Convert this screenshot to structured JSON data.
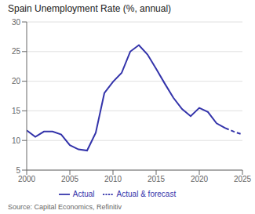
{
  "chart_data": {
    "type": "line",
    "title": "Spain Unemployment Rate (%, annual)",
    "annotations": [
      "Source: Capital Economics, Refinitiv"
    ],
    "xlim": [
      2000,
      2025
    ],
    "xticks": [
      2000,
      2005,
      2010,
      2015,
      2020,
      2025
    ],
    "ylim": [
      5,
      30
    ],
    "yticks": [
      5,
      10,
      15,
      20,
      25,
      30
    ],
    "grid": true,
    "legend": "bottom",
    "series": [
      {
        "name": "Actual",
        "color": "#3333AA",
        "line_style": "solid",
        "x": [
          2000,
          2001,
          2002,
          2003,
          2004,
          2005,
          2006,
          2007,
          2008,
          2009,
          2010,
          2011,
          2012,
          2013,
          2014,
          2015,
          2016,
          2017,
          2018,
          2019,
          2020,
          2021,
          2022,
          2023
        ],
        "values": [
          11.7,
          10.6,
          11.5,
          11.5,
          11.0,
          9.2,
          8.5,
          8.3,
          11.3,
          18.0,
          19.9,
          21.4,
          25.0,
          26.1,
          24.5,
          22.1,
          19.6,
          17.2,
          15.3,
          14.1,
          15.5,
          14.8,
          12.9,
          12.1
        ]
      },
      {
        "name": "Actual & forecast",
        "color": "#3333AA",
        "line_style": "dashed",
        "x": [
          2023,
          2024,
          2025
        ],
        "values": [
          12.1,
          11.5,
          11.0
        ]
      }
    ]
  }
}
